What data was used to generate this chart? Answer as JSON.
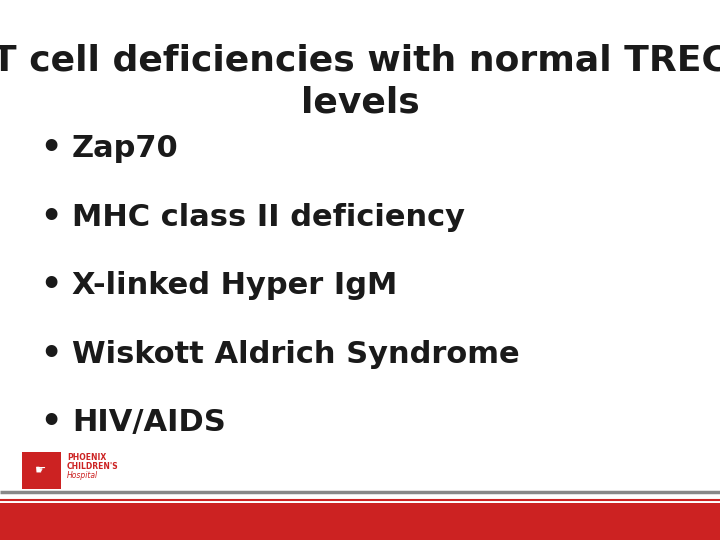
{
  "title_line1": "T cell deficiencies with normal TREC",
  "title_line2": "levels",
  "bullet_items": [
    "Zap70",
    "MHC class II deficiency",
    "X-linked Hyper IgM",
    "Wiskott Aldrich Syndrome",
    "HIV/AIDS"
  ],
  "background_color": "#ffffff",
  "text_color": "#1a1a1a",
  "title_fontsize": 26,
  "bullet_fontsize": 22,
  "bullet_color": "#1a1a1a",
  "footer_bar_color": "#cc2222",
  "footer_gray_color": "#888888",
  "logo_text_phoenix": "PHOENIX",
  "logo_text_childrens": "CHILDREN'S",
  "logo_text_hospital": "Hospital"
}
